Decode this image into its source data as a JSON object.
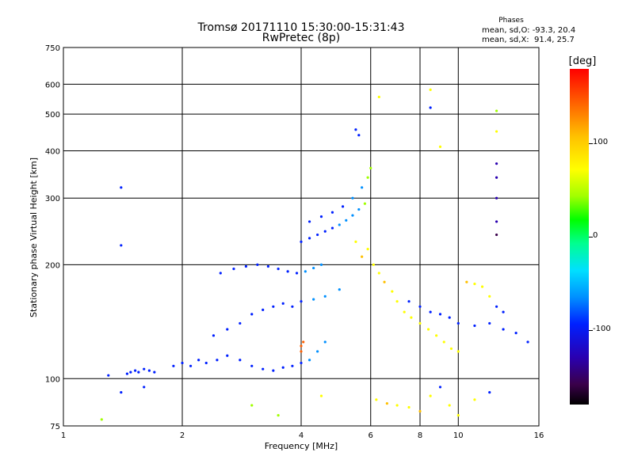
{
  "header": {
    "title_line1": "Tromsø 20171110 15:30:00-15:31:43",
    "title_line2": "RwPretec (8p)"
  },
  "phases_box": {
    "title": "Phases",
    "o_line": "mean, sd,O: -93.3, 20.4",
    "x_line": "mean, sd,X:  91.4, 25.7"
  },
  "colorbar": {
    "unit": "[deg]",
    "ticks": [
      "100",
      "0",
      "-100"
    ],
    "tick_values": [
      100,
      0,
      -100
    ],
    "range": [
      -180,
      180
    ],
    "colors": [
      "#000000",
      "#3a004a",
      "#2a00b0",
      "#0020ff",
      "#0090ff",
      "#00e0ff",
      "#00ff90",
      "#00ff00",
      "#a0ff00",
      "#ffff00",
      "#ffc000",
      "#ff6000",
      "#ff0000"
    ]
  },
  "chart_data": {
    "type": "scatter",
    "title": "Tromsø 20171110 15:30:00-15:31:43",
    "subtitle": "RwPretec (8p)",
    "xlabel": "Frequency [MHz]",
    "ylabel": "Stationary phase Virtual Height [km]",
    "x_scale": "log",
    "y_scale": "log",
    "xlim": [
      1,
      16
    ],
    "ylim": [
      75,
      750
    ],
    "x_ticks": [
      "1",
      "2",
      "4",
      "6",
      "8",
      "10",
      "16"
    ],
    "x_tick_values": [
      1,
      2,
      4,
      6,
      8,
      10,
      16
    ],
    "y_ticks": [
      "75",
      "100",
      "200",
      "300",
      "400",
      "500",
      "600",
      "750"
    ],
    "y_tick_values": [
      75,
      100,
      200,
      300,
      400,
      500,
      600,
      750
    ],
    "grid": true,
    "series": [
      {
        "points": [
          [
            1.45,
            103,
            -95
          ],
          [
            1.48,
            104,
            -92
          ],
          [
            1.52,
            105,
            -90
          ],
          [
            1.55,
            104,
            -88
          ],
          [
            1.6,
            106,
            -90
          ],
          [
            1.65,
            105,
            -85
          ],
          [
            1.7,
            104,
            -95
          ],
          [
            1.4,
            320,
            -100
          ],
          [
            1.4,
            225,
            -100
          ],
          [
            1.3,
            102,
            -95
          ],
          [
            1.4,
            92,
            -100
          ],
          [
            1.6,
            95,
            -100
          ],
          [
            1.25,
            78,
            60
          ],
          [
            1.9,
            108,
            -95
          ],
          [
            2.0,
            110,
            -90
          ],
          [
            2.1,
            108,
            -80
          ],
          [
            2.2,
            112,
            -95
          ],
          [
            2.3,
            110,
            -90
          ],
          [
            2.45,
            112,
            -85
          ],
          [
            2.6,
            115,
            -92
          ],
          [
            2.8,
            112,
            -95
          ],
          [
            3.0,
            108,
            -90
          ],
          [
            3.2,
            106,
            -95
          ],
          [
            3.4,
            105,
            -98
          ],
          [
            3.6,
            107,
            -92
          ],
          [
            3.8,
            108,
            -85
          ],
          [
            4.0,
            110,
            -80
          ],
          [
            4.2,
            112,
            -70
          ],
          [
            4.4,
            118,
            -65
          ],
          [
            4.6,
            125,
            -60
          ],
          [
            2.4,
            130,
            -95
          ],
          [
            2.6,
            135,
            -90
          ],
          [
            2.8,
            140,
            -92
          ],
          [
            3.0,
            148,
            -95
          ],
          [
            3.2,
            152,
            -88
          ],
          [
            3.4,
            155,
            -90
          ],
          [
            3.6,
            158,
            -92
          ],
          [
            3.8,
            155,
            -85
          ],
          [
            4.0,
            160,
            -80
          ],
          [
            4.3,
            162,
            -75
          ],
          [
            4.6,
            165,
            -70
          ],
          [
            5.0,
            172,
            -60
          ],
          [
            2.5,
            190,
            -95
          ],
          [
            2.7,
            195,
            -100
          ],
          [
            2.9,
            198,
            -98
          ],
          [
            3.1,
            200,
            -90
          ],
          [
            3.3,
            198,
            -92
          ],
          [
            3.5,
            195,
            -95
          ],
          [
            3.7,
            192,
            -88
          ],
          [
            3.9,
            190,
            -80
          ],
          [
            4.1,
            192,
            -70
          ],
          [
            4.3,
            196,
            -60
          ],
          [
            4.5,
            200,
            -50
          ],
          [
            4.0,
            230,
            -95
          ],
          [
            4.2,
            235,
            -90
          ],
          [
            4.4,
            240,
            -88
          ],
          [
            4.6,
            245,
            -85
          ],
          [
            4.8,
            250,
            -80
          ],
          [
            5.0,
            255,
            -75
          ],
          [
            5.2,
            262,
            -70
          ],
          [
            5.4,
            270,
            -65
          ],
          [
            5.6,
            280,
            -60
          ],
          [
            5.8,
            290,
            60
          ],
          [
            4.2,
            260,
            -95
          ],
          [
            4.5,
            268,
            -90
          ],
          [
            4.8,
            275,
            -85
          ],
          [
            5.1,
            285,
            -80
          ],
          [
            5.4,
            300,
            -75
          ],
          [
            5.7,
            320,
            -70
          ],
          [
            5.9,
            340,
            60
          ],
          [
            6.0,
            360,
            70
          ],
          [
            5.6,
            440,
            -90
          ],
          [
            5.5,
            455,
            -100
          ],
          [
            6.3,
            555,
            100
          ],
          [
            8.5,
            580,
            100
          ],
          [
            8.5,
            520,
            -95
          ],
          [
            9.0,
            410,
            100
          ],
          [
            12.5,
            510,
            60
          ],
          [
            12.5,
            450,
            100
          ],
          [
            12.5,
            370,
            -110
          ],
          [
            12.5,
            340,
            -120
          ],
          [
            12.5,
            300,
            -130
          ],
          [
            12.5,
            240,
            -150
          ],
          [
            12.5,
            260,
            -120
          ],
          [
            5.5,
            230,
            100
          ],
          [
            5.7,
            210,
            110
          ],
          [
            5.9,
            220,
            90
          ],
          [
            6.1,
            200,
            95
          ],
          [
            6.3,
            190,
            100
          ],
          [
            6.5,
            180,
            110
          ],
          [
            6.8,
            170,
            95
          ],
          [
            7.0,
            160,
            100
          ],
          [
            7.3,
            150,
            90
          ],
          [
            7.6,
            145,
            95
          ],
          [
            8.0,
            140,
            100
          ],
          [
            8.4,
            135,
            90
          ],
          [
            8.8,
            130,
            100
          ],
          [
            9.2,
            125,
            95
          ],
          [
            9.6,
            120,
            100
          ],
          [
            10.0,
            118,
            80
          ],
          [
            4.0,
            122,
            150
          ],
          [
            4.0,
            118,
            150
          ],
          [
            4.05,
            125,
            140
          ],
          [
            7.5,
            160,
            -95
          ],
          [
            8.0,
            155,
            -90
          ],
          [
            8.5,
            150,
            -92
          ],
          [
            9.0,
            148,
            -85
          ],
          [
            9.5,
            145,
            -90
          ],
          [
            10.0,
            140,
            -95
          ],
          [
            11.0,
            138,
            -88
          ],
          [
            12.0,
            140,
            -80
          ],
          [
            13.0,
            135,
            -95
          ],
          [
            14.0,
            132,
            -90
          ],
          [
            15.0,
            125,
            -95
          ],
          [
            10.5,
            180,
            110
          ],
          [
            11.0,
            178,
            100
          ],
          [
            11.5,
            175,
            90
          ],
          [
            12.0,
            165,
            80
          ],
          [
            12.5,
            155,
            -90
          ],
          [
            13.0,
            150,
            -95
          ],
          [
            6.2,
            88,
            100
          ],
          [
            6.6,
            86,
            110
          ],
          [
            7.0,
            85,
            90
          ],
          [
            7.5,
            84,
            100
          ],
          [
            8.0,
            82,
            110
          ],
          [
            8.5,
            90,
            100
          ],
          [
            9.0,
            95,
            -95
          ],
          [
            9.5,
            85,
            100
          ],
          [
            10.0,
            80,
            90
          ],
          [
            11.0,
            88,
            100
          ],
          [
            12.0,
            92,
            -95
          ],
          [
            3.0,
            85,
            50
          ],
          [
            3.5,
            80,
            60
          ],
          [
            4.5,
            90,
            100
          ]
        ]
      }
    ]
  }
}
